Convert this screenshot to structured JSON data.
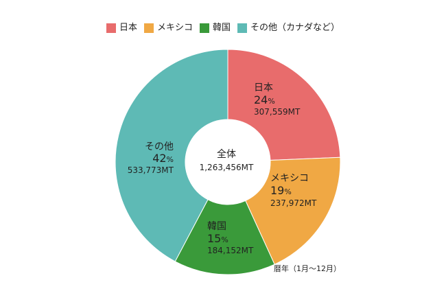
{
  "chart_data": {
    "type": "pie",
    "categories": [
      "日本",
      "メキシコ",
      "韓国",
      "その他（カナダなど）"
    ],
    "slices": [
      {
        "legend": "日本",
        "label": "日本",
        "percent": 24,
        "percent_text": "24",
        "value": 307559,
        "value_text": "307,559MT",
        "color": "#e86c6c"
      },
      {
        "legend": "メキシコ",
        "label": "メキシコ",
        "percent": 19,
        "percent_text": "19",
        "value": 237972,
        "value_text": "237,972MT",
        "color": "#f0a844"
      },
      {
        "legend": "韓国",
        "label": "韓国",
        "percent": 15,
        "percent_text": "15",
        "value": 184152,
        "value_text": "184,152MT",
        "color": "#3a9a3a"
      },
      {
        "legend": "その他（カナダなど）",
        "label": "その他",
        "percent": 42,
        "percent_text": "42",
        "value": 533773,
        "value_text": "533,773MT",
        "color": "#5ebab5"
      }
    ],
    "percent_unit": "%",
    "center": {
      "title": "全体",
      "total": 1263456,
      "total_text": "1,263,456MT"
    },
    "note": "暦年（1月〜12月）",
    "legend_position": "top"
  }
}
